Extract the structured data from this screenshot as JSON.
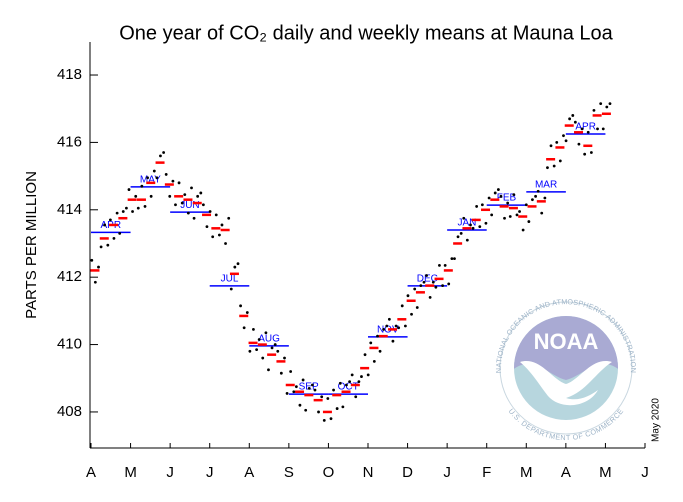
{
  "chart_data": {
    "type": "scatter",
    "title": "One year of CO₂ daily and weekly means at Mauna Loa",
    "y_label": "PARTS PER MILLION",
    "side_note": "May 2020",
    "xlim": [
      0,
      14
    ],
    "ylim": [
      406.93,
      418.98
    ],
    "xticks": [
      {
        "value": 0,
        "label": "A"
      },
      {
        "value": 1,
        "label": "M"
      },
      {
        "value": 2,
        "label": "J"
      },
      {
        "value": 3,
        "label": "J"
      },
      {
        "value": 4,
        "label": "A"
      },
      {
        "value": 5,
        "label": "S"
      },
      {
        "value": 6,
        "label": "O"
      },
      {
        "value": 7,
        "label": "N"
      },
      {
        "value": 8,
        "label": "D"
      },
      {
        "value": 9,
        "label": "J"
      },
      {
        "value": 10,
        "label": "F"
      },
      {
        "value": 11,
        "label": "M"
      },
      {
        "value": 12,
        "label": "A"
      },
      {
        "value": 13,
        "label": "M"
      },
      {
        "value": 14,
        "label": "J"
      }
    ],
    "yticks": [
      408,
      410,
      412,
      414,
      416,
      418
    ],
    "daily": {
      "color": "#000000",
      "x": [
        0.02,
        0.11,
        0.19,
        0.255,
        0.345,
        0.425,
        0.49,
        0.58,
        0.66,
        0.725,
        0.815,
        0.895,
        0.96,
        1.05,
        1.13,
        1.195,
        1.285,
        1.365,
        1.43,
        1.52,
        1.6,
        1.665,
        1.755,
        1.835,
        1.9,
        1.99,
        2.07,
        2.135,
        2.225,
        2.305,
        2.37,
        2.46,
        2.54,
        2.605,
        2.695,
        2.775,
        2.84,
        2.93,
        3.01,
        3.075,
        3.165,
        3.245,
        3.31,
        3.4,
        3.48,
        3.545,
        3.635,
        3.715,
        3.78,
        3.87,
        3.95,
        4.015,
        4.105,
        4.185,
        4.25,
        4.34,
        4.42,
        4.485,
        4.575,
        4.655,
        4.72,
        4.81,
        4.89,
        4.955,
        5.045,
        5.125,
        5.19,
        5.28,
        5.36,
        5.425,
        5.515,
        5.595,
        5.66,
        5.75,
        5.83,
        5.895,
        5.985,
        6.065,
        6.13,
        6.22,
        6.3,
        6.365,
        6.455,
        6.535,
        6.6,
        6.69,
        6.77,
        6.835,
        6.925,
        7.005,
        7.07,
        7.16,
        7.24,
        7.305,
        7.395,
        7.475,
        7.54,
        7.63,
        7.71,
        7.775,
        7.865,
        7.945,
        8.01,
        8.1,
        8.18,
        8.245,
        8.335,
        8.415,
        8.48,
        8.57,
        8.65,
        8.715,
        8.805,
        8.885,
        8.95,
        9.04,
        9.12,
        9.185,
        9.275,
        9.355,
        9.42,
        9.51,
        9.59,
        9.655,
        9.745,
        9.825,
        9.89,
        9.98,
        10.06,
        10.125,
        10.215,
        10.295,
        10.36,
        10.45,
        10.53,
        10.595,
        10.685,
        10.765,
        10.83,
        10.92,
        11.0,
        11.065,
        11.155,
        11.235,
        11.3,
        11.39,
        11.47,
        11.535,
        11.625,
        11.705,
        11.77,
        11.86,
        11.94,
        12.005,
        12.095,
        12.175,
        12.24,
        12.33,
        12.41,
        12.475,
        12.565,
        12.645,
        12.71,
        12.8,
        12.88,
        12.945,
        13.035,
        13.115
      ],
      "values": [
        412.5,
        411.85,
        412.3,
        412.9,
        413.55,
        412.95,
        413.7,
        413.15,
        413.9,
        413.3,
        413.95,
        414.05,
        414.6,
        413.95,
        414.4,
        414.05,
        414.7,
        414.1,
        414.95,
        414.4,
        415.15,
        414.95,
        415.6,
        415.7,
        415.05,
        414.4,
        414.85,
        414.15,
        414.8,
        414.2,
        414.45,
        413.9,
        414.65,
        413.75,
        414.4,
        414.5,
        414.15,
        413.5,
        413.95,
        413.2,
        413.85,
        413.25,
        413.55,
        413.0,
        413.75,
        411.65,
        412.3,
        412.4,
        411.15,
        410.5,
        410.95,
        409.8,
        410.45,
        409.85,
        410.15,
        409.6,
        410.35,
        409.25,
        409.9,
        410.0,
        409.8,
        409.15,
        409.6,
        408.55,
        409.2,
        408.6,
        408.75,
        408.2,
        408.95,
        408.05,
        408.7,
        408.8,
        408.65,
        408.0,
        408.45,
        407.75,
        408.4,
        407.8,
        408.65,
        408.1,
        408.85,
        408.15,
        408.8,
        408.9,
        409.1,
        408.45,
        408.9,
        409.05,
        409.7,
        409.1,
        410.05,
        409.5,
        410.25,
        409.8,
        410.45,
        410.55,
        410.75,
        410.1,
        410.55,
        410.5,
        411.15,
        410.55,
        411.45,
        410.9,
        411.65,
        411.1,
        411.75,
        411.85,
        412.05,
        411.4,
        411.85,
        411.7,
        412.35,
        411.75,
        412.35,
        411.8,
        412.55,
        412.55,
        413.2,
        413.3,
        413.75,
        413.1,
        413.55,
        413.45,
        414.1,
        413.5,
        414.15,
        413.6,
        414.35,
        413.85,
        414.5,
        414.6,
        414.4,
        413.75,
        414.2,
        413.8,
        414.45,
        413.85,
        413.95,
        413.4,
        414.15,
        413.65,
        414.3,
        414.4,
        414.55,
        413.9,
        414.35,
        415.25,
        415.9,
        415.3,
        416.0,
        415.45,
        416.2,
        416.05,
        416.7,
        416.8,
        416.6,
        415.95,
        416.4,
        415.65,
        416.3,
        415.7,
        416.95,
        416.4,
        417.15,
        416.4,
        417.05,
        417.15
      ]
    },
    "weekly": {
      "color": "#ff0000",
      "x": [
        0.1,
        0.335,
        0.57,
        0.805,
        1.04,
        1.275,
        1.51,
        1.745,
        1.98,
        2.215,
        2.45,
        2.685,
        2.92,
        3.155,
        3.39,
        3.625,
        3.86,
        4.095,
        4.33,
        4.565,
        4.8,
        5.035,
        5.27,
        5.505,
        5.74,
        5.975,
        6.21,
        6.445,
        6.68,
        6.915,
        7.15,
        7.385,
        7.62,
        7.855,
        8.09,
        8.325,
        8.56,
        8.795,
        9.03,
        9.265,
        9.5,
        9.735,
        9.97,
        10.205,
        10.44,
        10.675,
        10.91,
        11.145,
        11.38,
        11.615,
        11.85,
        12.085,
        12.32,
        12.555,
        12.79,
        13.025
      ],
      "values": [
        412.2,
        413.15,
        413.55,
        413.75,
        414.3,
        414.3,
        414.8,
        415.4,
        414.75,
        414.4,
        414.3,
        414.2,
        413.85,
        413.45,
        413.4,
        412.1,
        410.85,
        410.05,
        410.0,
        409.7,
        409.5,
        408.8,
        408.6,
        408.5,
        408.35,
        408.0,
        408.5,
        408.6,
        408.8,
        409.3,
        409.9,
        410.25,
        410.45,
        410.75,
        411.3,
        411.55,
        411.75,
        411.95,
        412.2,
        413.0,
        413.45,
        413.7,
        414.0,
        414.3,
        414.1,
        414.05,
        413.8,
        414.1,
        414.25,
        415.5,
        415.85,
        416.5,
        416.3,
        415.9,
        416.8,
        416.85
      ]
    },
    "monthly": {
      "color": "#0000ff",
      "labels": [
        "APR",
        "MAY",
        "JUN",
        "JUL",
        "AUG",
        "SEP",
        "OCT",
        "NOV",
        "DEC",
        "JAN",
        "FEB",
        "MAR",
        "APR"
      ],
      "x": [
        0,
        1,
        2,
        3,
        4,
        5,
        6,
        7,
        8,
        9,
        10,
        11,
        12
      ],
      "values": [
        413.33,
        414.68,
        413.93,
        411.74,
        409.96,
        408.53,
        408.53,
        410.23,
        411.74,
        413.4,
        414.14,
        414.53,
        416.25
      ]
    }
  },
  "logo": {
    "name": "NOAA",
    "top_text": "NATIONAL OCEANIC AND ATMOSPHERIC ADMINISTRATION",
    "bottom_text": "U.S. DEPARTMENT OF COMMERCE"
  }
}
